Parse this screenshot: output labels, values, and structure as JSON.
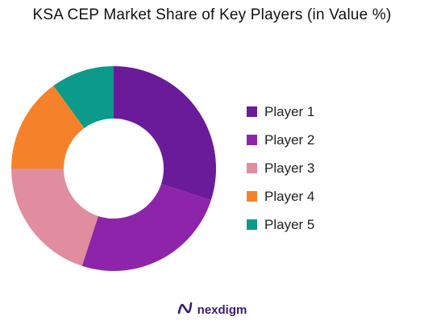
{
  "chart_data": {
    "type": "pie",
    "variant": "donut",
    "title": "KSA CEP Market Share of Key Players (in Value %)",
    "legend_position": "right",
    "slices": [
      {
        "label": "Player 1",
        "value": 30,
        "color": "#6a1b9a"
      },
      {
        "label": "Player 2",
        "value": 25,
        "color": "#8e24aa"
      },
      {
        "label": "Player 3",
        "value": 20,
        "color": "#e08da0"
      },
      {
        "label": "Player 4",
        "value": 15,
        "color": "#f5822a"
      },
      {
        "label": "Player 5",
        "value": 10,
        "color": "#0c9a8a"
      }
    ]
  },
  "brand": {
    "name": "nexdigm",
    "icon": "nexdigm-logo-icon",
    "color": "#3b1b73"
  }
}
